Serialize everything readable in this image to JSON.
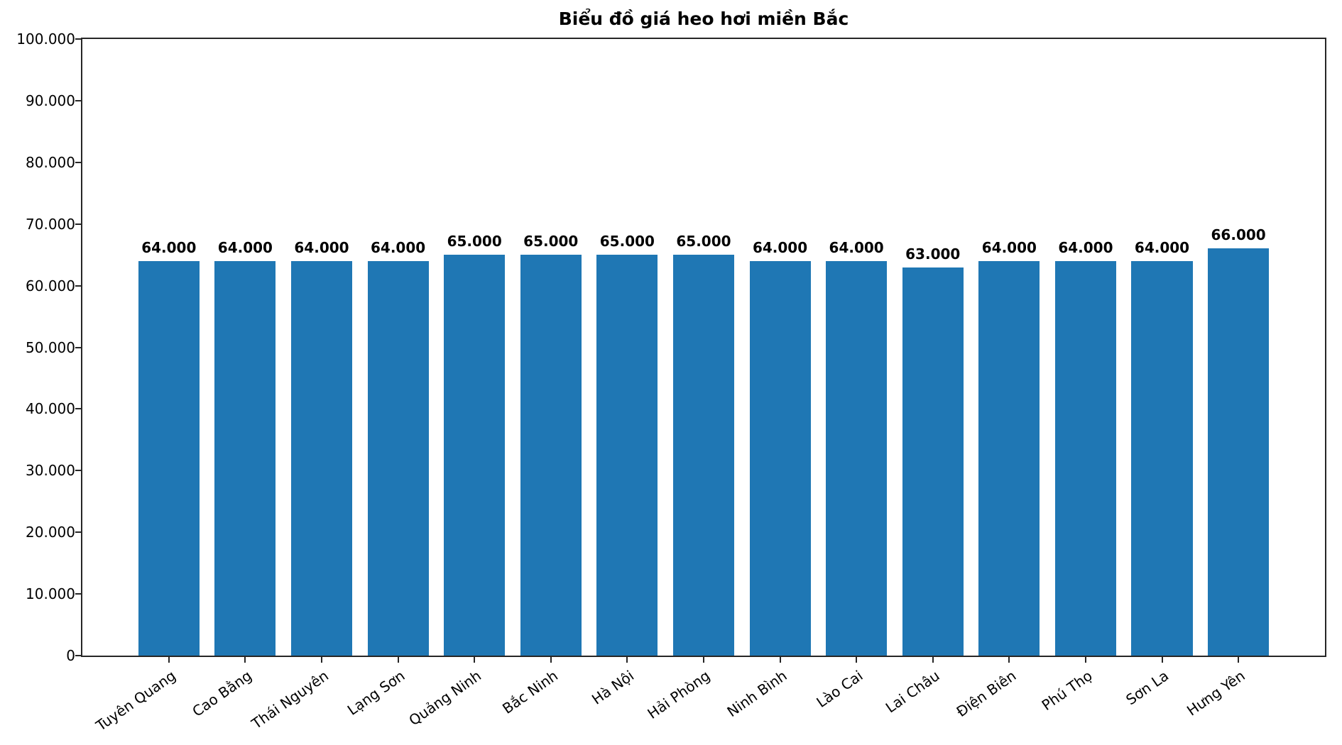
{
  "chart_data": {
    "type": "bar",
    "title": "Biểu đồ giá heo hơi miền Bắc",
    "categories": [
      "Tuyên Quang",
      "Cao Bằng",
      "Thái Nguyên",
      "Lạng Sơn",
      "Quảng Ninh",
      "Bắc Ninh",
      "Hà Nội",
      "Hải Phòng",
      "Ninh Bình",
      "Lào Cai",
      "Lai Châu",
      "Điện Biên",
      "Phú Thọ",
      "Sơn La",
      "Hưng Yên"
    ],
    "values": [
      64000,
      64000,
      64000,
      64000,
      65000,
      65000,
      65000,
      65000,
      64000,
      64000,
      63000,
      64000,
      64000,
      64000,
      66000
    ],
    "value_labels": [
      "64.000",
      "64.000",
      "64.000",
      "64.000",
      "65.000",
      "65.000",
      "65.000",
      "65.000",
      "64.000",
      "64.000",
      "63.000",
      "64.000",
      "64.000",
      "64.000",
      "66.000"
    ],
    "xlabel": "",
    "ylabel": "",
    "ylim": [
      0,
      100000
    ],
    "yticks": [
      {
        "value": 0,
        "label": "0"
      },
      {
        "value": 10000,
        "label": "10.000"
      },
      {
        "value": 20000,
        "label": "20.000"
      },
      {
        "value": 30000,
        "label": "30.000"
      },
      {
        "value": 40000,
        "label": "40.000"
      },
      {
        "value": 50000,
        "label": "50.000"
      },
      {
        "value": 60000,
        "label": "60.000"
      },
      {
        "value": 70000,
        "label": "70.000"
      },
      {
        "value": 80000,
        "label": "80.000"
      },
      {
        "value": 90000,
        "label": "90.000"
      },
      {
        "value": 100000,
        "label": "100.000"
      }
    ],
    "grid": false,
    "legend_position": "none",
    "bar_color": "#1f77b4",
    "x_tick_rotation_deg": -35
  }
}
